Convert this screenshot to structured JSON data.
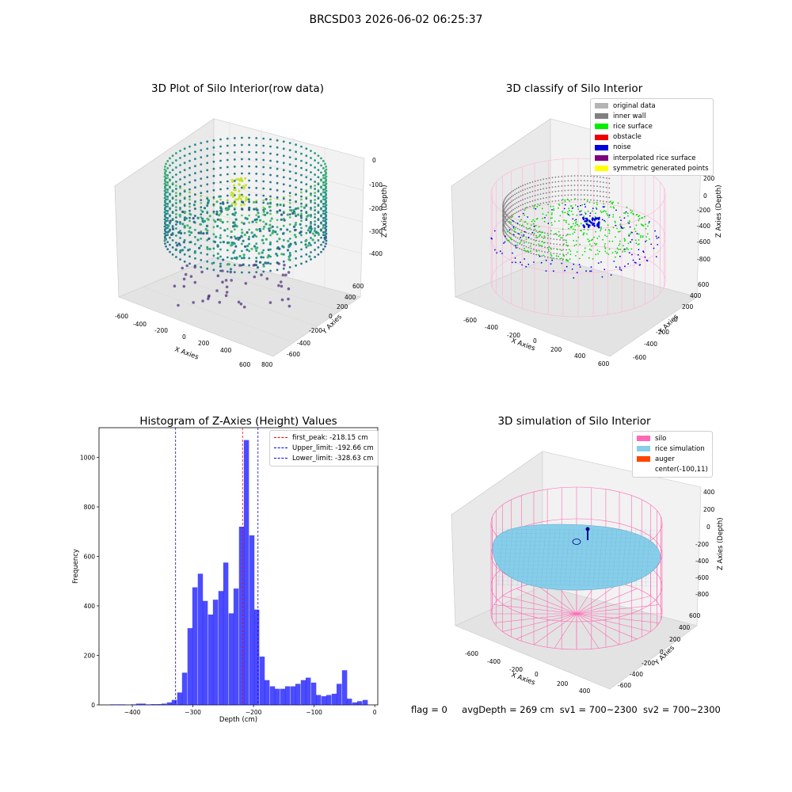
{
  "suptitle": "BRCSD03 2026-06-02 06:25:37",
  "status": {
    "flag": "flag = 0",
    "avg_depth": "avgDepth = 269 cm",
    "sv1": "sv1 = 700~2300",
    "sv2": "sv2 = 700~2300"
  },
  "panels": {
    "raw": {
      "title": "3D Plot of Silo Interior(row data)",
      "xlabel": "X Axies",
      "ylabel": "Y Axies",
      "zlabel": "Z Axies (Depth)",
      "xticks": [
        "-600",
        "-400",
        "-200",
        "0",
        "200",
        "400",
        "600",
        "800"
      ],
      "yticks": [
        "-600",
        "-400",
        "-200",
        "0",
        "200",
        "400",
        "600"
      ],
      "zticks": [
        "0",
        "-100",
        "-200",
        "-300",
        "-400"
      ]
    },
    "classify": {
      "title": "3D classify of Silo Interior",
      "xlabel": "X Axies",
      "ylabel": "Y Axies",
      "zlabel": "Z Axies (Depth)",
      "xticks": [
        "-600",
        "-400",
        "-200",
        "0",
        "200",
        "400",
        "600"
      ],
      "yticks": [
        "-600",
        "-400",
        "-200",
        "0",
        "200",
        "400",
        "600"
      ],
      "zticks": [
        "200",
        "0",
        "-200",
        "-400",
        "-600",
        "-800"
      ],
      "legend": [
        {
          "label": "original data",
          "color": "#b4b4b4"
        },
        {
          "label": "inner wall",
          "color": "#808080"
        },
        {
          "label": "rice surface",
          "color": "#00ee00"
        },
        {
          "label": "obstacle",
          "color": "#ee0000"
        },
        {
          "label": "noise",
          "color": "#0000dd"
        },
        {
          "label": "interpolated rice surface",
          "color": "#800080"
        },
        {
          "label": "symmetric generated points",
          "color": "#ffff00"
        }
      ]
    },
    "simulation": {
      "title": "3D simulation of Silo Interior",
      "xlabel": "X Axies",
      "ylabel": "Y Axies",
      "zlabel": "Z Axies (Depth)",
      "xticks": [
        "-600",
        "-400",
        "-200",
        "0",
        "200",
        "400"
      ],
      "yticks": [
        "-600",
        "-400",
        "-200",
        "0",
        "200",
        "400",
        "600"
      ],
      "zticks": [
        "400",
        "200",
        "0",
        "-200",
        "-400",
        "-600",
        "-800"
      ],
      "legend": [
        {
          "label": "silo",
          "color": "#ff69b4"
        },
        {
          "label": "rice simulation",
          "color": "#87ceeb"
        },
        {
          "label": "auger",
          "color": "#ff4500"
        },
        {
          "label": "center(-100,11)",
          "color": ""
        }
      ]
    }
  },
  "chart_data": {
    "type": "bar",
    "title": "Histogram of Z-Axies (Height) Values",
    "xlabel": "Depth (cm)",
    "ylabel": "Frequency",
    "xlim": [
      -455,
      5
    ],
    "ylim": [
      0,
      1120
    ],
    "xticks": [
      -400,
      -300,
      -200,
      -100,
      0
    ],
    "yticks": [
      0,
      200,
      400,
      600,
      800,
      1000
    ],
    "bar_color": "#0000ff",
    "bin_width": 8.46,
    "bins": [
      [
        -437,
        2
      ],
      [
        -428,
        2
      ],
      [
        -420,
        2
      ],
      [
        -411,
        0
      ],
      [
        -403,
        2
      ],
      [
        -394,
        5
      ],
      [
        -386,
        5
      ],
      [
        -377,
        2
      ],
      [
        -369,
        3
      ],
      [
        -360,
        3
      ],
      [
        -352,
        5
      ],
      [
        -343,
        10
      ],
      [
        -335,
        20
      ],
      [
        -326,
        50
      ],
      [
        -318,
        130
      ],
      [
        -309,
        310
      ],
      [
        -301,
        475
      ],
      [
        -292,
        530
      ],
      [
        -284,
        420
      ],
      [
        -275,
        365
      ],
      [
        -267,
        425
      ],
      [
        -258,
        460
      ],
      [
        -250,
        575
      ],
      [
        -241,
        370
      ],
      [
        -233,
        470
      ],
      [
        -224,
        720
      ],
      [
        -216,
        1070
      ],
      [
        -207,
        685
      ],
      [
        -199,
        385
      ],
      [
        -190,
        195
      ],
      [
        -182,
        100
      ],
      [
        -173,
        75
      ],
      [
        -165,
        65
      ],
      [
        -156,
        65
      ],
      [
        -148,
        75
      ],
      [
        -139,
        75
      ],
      [
        -131,
        85
      ],
      [
        -122,
        100
      ],
      [
        -114,
        110
      ],
      [
        -105,
        90
      ],
      [
        -97,
        40
      ],
      [
        -88,
        35
      ],
      [
        -80,
        40
      ],
      [
        -71,
        45
      ],
      [
        -63,
        85
      ],
      [
        -54,
        140
      ],
      [
        -46,
        25
      ],
      [
        -37,
        10
      ],
      [
        -29,
        15
      ],
      [
        -20,
        20
      ]
    ],
    "reference_lines": [
      {
        "name": "first_peak: -218.15 cm",
        "x": -218.15,
        "color": "#ff0000"
      },
      {
        "name": "Upper_limit: -192.66 cm",
        "x": -192.66,
        "color": "#0000ff"
      },
      {
        "name": "Lower_limit: -328.63 cm",
        "x": -328.63,
        "color": "#0000ff"
      }
    ]
  }
}
